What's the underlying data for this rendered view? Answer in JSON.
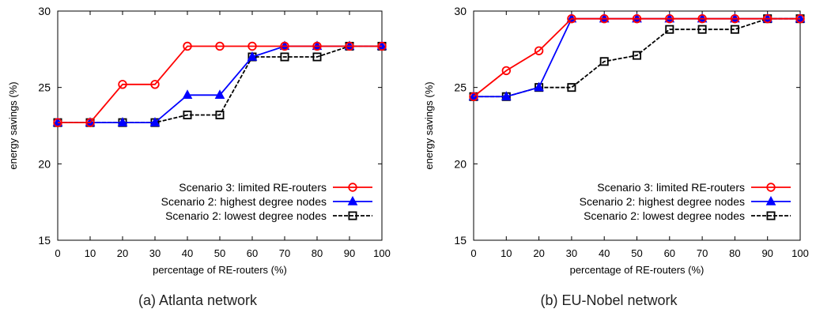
{
  "captions": [
    "(a) Atlanta network",
    "(b) EU-Nobel network"
  ],
  "colors": {
    "scenario3": "#ff0000",
    "highest": "#0000ff",
    "lowest": "#000000",
    "axis": "#000000",
    "text": "#222222"
  },
  "chart_data": [
    {
      "type": "line",
      "caption": "(a) Atlanta network",
      "xlabel": "percentage of RE-routers (%)",
      "ylabel": "energy savings (%)",
      "x": [
        0,
        10,
        20,
        30,
        40,
        50,
        60,
        70,
        80,
        90,
        100
      ],
      "xlim": [
        0,
        100
      ],
      "ylim": [
        15,
        30
      ],
      "yticks": [
        15,
        20,
        25,
        30
      ],
      "grid": false,
      "legend_position": "bottom-right",
      "series": [
        {
          "name": "Scenario 3: limited RE-routers",
          "color": "#ff0000",
          "marker": "circle",
          "values": [
            22.7,
            22.7,
            25.2,
            25.2,
            27.7,
            27.7,
            27.7,
            27.7,
            27.7,
            27.7,
            27.7
          ]
        },
        {
          "name": "Scenario 2: highest degree nodes",
          "color": "#0000ff",
          "marker": "triangle",
          "values": [
            22.7,
            22.7,
            22.7,
            22.7,
            24.5,
            24.5,
            27.0,
            27.7,
            27.7,
            27.7,
            27.7
          ]
        },
        {
          "name": "Scenario 2: lowest degree nodes",
          "color": "#000000",
          "marker": "square",
          "values": [
            22.7,
            22.7,
            22.7,
            22.7,
            23.2,
            23.2,
            27.0,
            27.0,
            27.0,
            27.7,
            27.7
          ]
        }
      ]
    },
    {
      "type": "line",
      "caption": "(b) EU-Nobel network",
      "xlabel": "percentage of RE-routers (%)",
      "ylabel": "energy savings (%)",
      "x": [
        0,
        10,
        20,
        30,
        40,
        50,
        60,
        70,
        80,
        90,
        100
      ],
      "xlim": [
        0,
        100
      ],
      "ylim": [
        15,
        30
      ],
      "yticks": [
        15,
        20,
        25,
        30
      ],
      "grid": false,
      "legend_position": "bottom-right",
      "series": [
        {
          "name": "Scenario 3: limited RE-routers",
          "color": "#ff0000",
          "marker": "circle",
          "values": [
            24.4,
            26.1,
            27.4,
            29.5,
            29.5,
            29.5,
            29.5,
            29.5,
            29.5,
            29.5,
            29.5
          ]
        },
        {
          "name": "Scenario 2: highest degree nodes",
          "color": "#0000ff",
          "marker": "triangle",
          "values": [
            24.4,
            24.4,
            25.0,
            29.5,
            29.5,
            29.5,
            29.5,
            29.5,
            29.5,
            29.5,
            29.5
          ]
        },
        {
          "name": "Scenario 2: lowest degree nodes",
          "color": "#000000",
          "marker": "square",
          "values": [
            24.4,
            24.4,
            25.0,
            25.0,
            26.7,
            27.1,
            28.8,
            28.8,
            28.8,
            29.5,
            29.5
          ]
        }
      ]
    }
  ]
}
